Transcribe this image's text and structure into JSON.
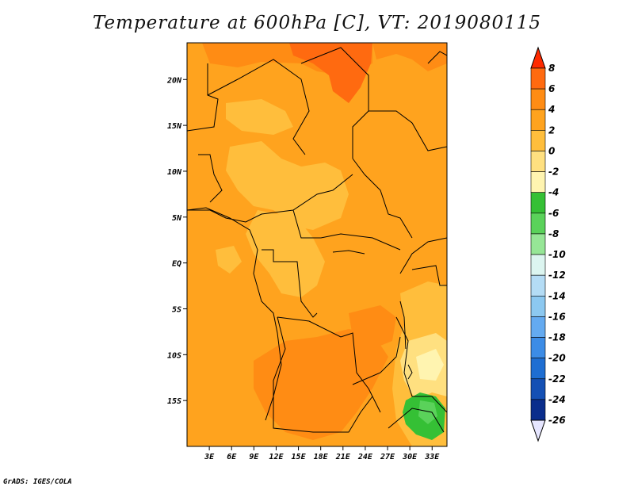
{
  "title": "Temperature at 600hPa [C], VT: 2019080115",
  "credit": "GrADS: IGES/COLA",
  "map": {
    "lon_range": [
      0,
      35
    ],
    "lat_range": [
      -20,
      24
    ],
    "x_ticks": [
      {
        "value": 3,
        "label": "3E"
      },
      {
        "value": 6,
        "label": "6E"
      },
      {
        "value": 9,
        "label": "9E"
      },
      {
        "value": 12,
        "label": "12E"
      },
      {
        "value": 15,
        "label": "15E"
      },
      {
        "value": 18,
        "label": "18E"
      },
      {
        "value": 21,
        "label": "21E"
      },
      {
        "value": 24,
        "label": "24E"
      },
      {
        "value": 27,
        "label": "27E"
      },
      {
        "value": 30,
        "label": "30E"
      },
      {
        "value": 33,
        "label": "33E"
      }
    ],
    "y_ticks": [
      {
        "value": 20,
        "label": "20N"
      },
      {
        "value": 15,
        "label": "15N"
      },
      {
        "value": 10,
        "label": "10N"
      },
      {
        "value": 5,
        "label": "5N"
      },
      {
        "value": 0,
        "label": "EQ"
      },
      {
        "value": -5,
        "label": "5S"
      },
      {
        "value": -10,
        "label": "10S"
      },
      {
        "value": -15,
        "label": "15S"
      }
    ]
  },
  "colorbar": {
    "levels": [
      "8",
      "6",
      "4",
      "2",
      "0",
      "-2",
      "-4",
      "-6",
      "-8",
      "-10",
      "-12",
      "-14",
      "-16",
      "-18",
      "-20",
      "-22",
      "-24",
      "-26"
    ],
    "colors": [
      "#ff3a00",
      "#ff6a10",
      "#ff8c14",
      "#ffa31e",
      "#ffbe3c",
      "#ffe080",
      "#fff4b0",
      "#35c035",
      "#5ad25a",
      "#96e696",
      "#dcf5f0",
      "#b4dcf5",
      "#8cc8f0",
      "#64aaf0",
      "#3c8ce6",
      "#1e6ed2",
      "#1450b4",
      "#0a2d8c",
      "#00005a"
    ],
    "top_arrow_color": "#ff2a00",
    "bottom_arrow_color": "#e6e6ff"
  }
}
